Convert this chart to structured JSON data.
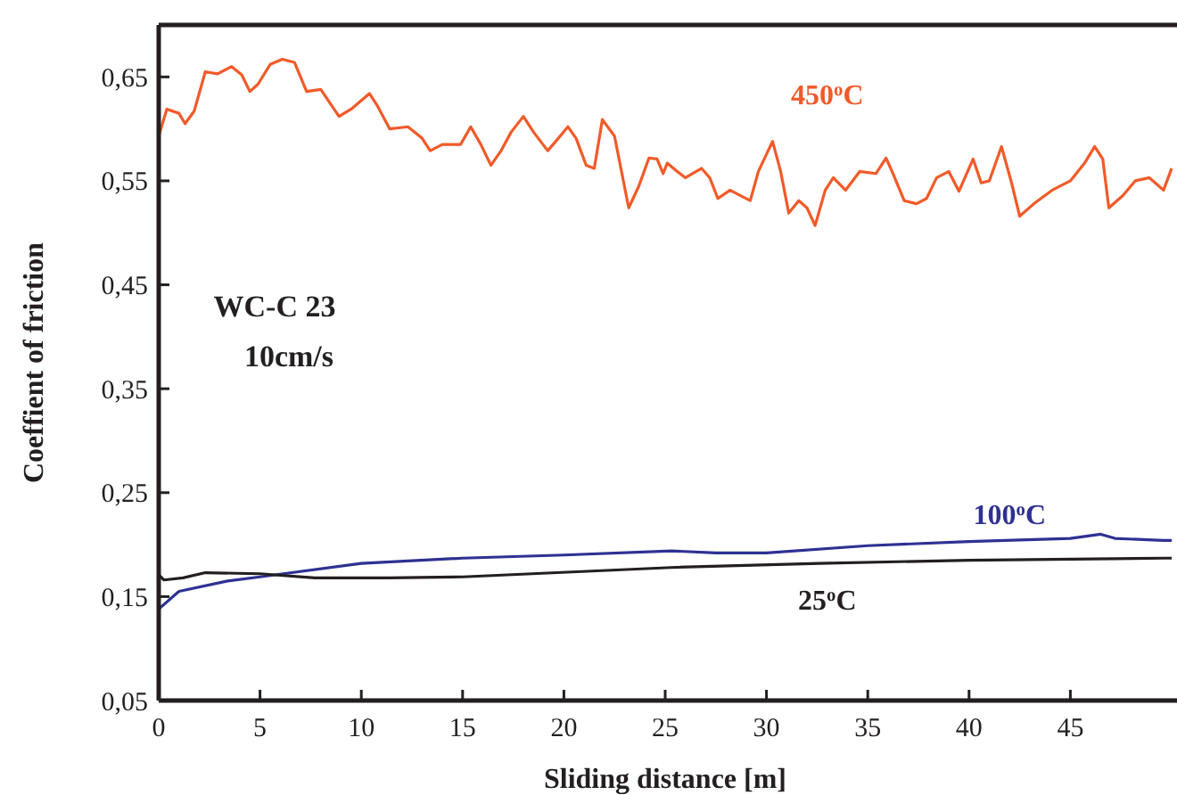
{
  "chart_data": {
    "type": "line",
    "xlabel": "Sliding distance [m]",
    "ylabel": "Coeffient of friction",
    "xlim": [
      0,
      50
    ],
    "xticks": [
      0,
      5,
      10,
      15,
      20,
      25,
      30,
      35,
      40,
      45
    ],
    "ylim": [
      0.05,
      0.7
    ],
    "yticks": [
      {
        "value": 0.05,
        "label": "0,05"
      },
      {
        "value": 0.15,
        "label": "0,15"
      },
      {
        "value": 0.25,
        "label": "0,25"
      },
      {
        "value": 0.35,
        "label": "0,35"
      },
      {
        "value": 0.45,
        "label": "0,45"
      },
      {
        "value": 0.55,
        "label": "0,55"
      },
      {
        "value": 0.65,
        "label": "0,65"
      }
    ],
    "annotations": [
      "WC-C 23",
      "10cm/s"
    ],
    "series": [
      {
        "name": "450$^{o}$C",
        "color": "#f15a29",
        "x": [
          0,
          0.4,
          1,
          1.3,
          1.75,
          2.3,
          2.9,
          3.6,
          4.1,
          4.5,
          4.9,
          5.5,
          6.1,
          6.7,
          7.3,
          8,
          8.9,
          9.5,
          10.4,
          10.8,
          11.4,
          12.3,
          13,
          13.4,
          14,
          14.9,
          15.4,
          15.9,
          16.4,
          16.9,
          17.4,
          18,
          18.5,
          19.2,
          19.6,
          20.2,
          20.6,
          21.1,
          21.5,
          21.9,
          22.5,
          23.2,
          23.7,
          24.2,
          24.6,
          24.9,
          25.1,
          25.6,
          26,
          26.8,
          27.2,
          27.6,
          28.2,
          29.2,
          29.6,
          30.3,
          30.7,
          31.1,
          31.6,
          32,
          32.4,
          32.9,
          33.3,
          33.9,
          34.6,
          35.4,
          35.9,
          36.2,
          36.8,
          37.4,
          37.9,
          38.4,
          39,
          39.5,
          40.2,
          40.6,
          41,
          41.6,
          42.1,
          42.5,
          43.2,
          44.1,
          45,
          45.7,
          46.2,
          46.6,
          46.9,
          47.6,
          48.2,
          48.9,
          49.6,
          50
        ],
        "values": [
          0.593,
          0.619,
          0.615,
          0.605,
          0.617,
          0.655,
          0.653,
          0.66,
          0.652,
          0.636,
          0.643,
          0.662,
          0.667,
          0.664,
          0.636,
          0.638,
          0.612,
          0.619,
          0.634,
          0.622,
          0.6,
          0.602,
          0.591,
          0.579,
          0.585,
          0.585,
          0.602,
          0.585,
          0.565,
          0.579,
          0.597,
          0.612,
          0.597,
          0.579,
          0.588,
          0.602,
          0.591,
          0.565,
          0.562,
          0.609,
          0.593,
          0.524,
          0.545,
          0.572,
          0.571,
          0.557,
          0.567,
          0.559,
          0.553,
          0.562,
          0.553,
          0.533,
          0.541,
          0.531,
          0.559,
          0.588,
          0.559,
          0.519,
          0.531,
          0.524,
          0.507,
          0.541,
          0.553,
          0.541,
          0.559,
          0.557,
          0.572,
          0.559,
          0.531,
          0.528,
          0.533,
          0.553,
          0.559,
          0.54,
          0.571,
          0.548,
          0.55,
          0.583,
          0.548,
          0.516,
          0.528,
          0.541,
          0.55,
          0.567,
          0.583,
          0.571,
          0.524,
          0.536,
          0.55,
          0.553,
          0.541,
          0.562
        ]
      },
      {
        "name": "100$^{o}$C",
        "color": "#2e3192",
        "x": [
          0,
          1,
          3.4,
          5,
          10,
          15,
          20,
          25.3,
          27.5,
          30,
          35,
          40,
          45,
          46.5,
          47.2,
          49.6,
          50
        ],
        "values": [
          0.138,
          0.155,
          0.165,
          0.169,
          0.182,
          0.187,
          0.19,
          0.194,
          0.192,
          0.192,
          0.199,
          0.203,
          0.206,
          0.21,
          0.206,
          0.204,
          0.204
        ]
      },
      {
        "name": "25$^{o}$C",
        "color": "#231f20",
        "x": [
          0,
          0.25,
          1.2,
          2.3,
          5,
          7.7,
          11.4,
          15,
          25.3,
          32.6,
          40,
          49.6,
          50
        ],
        "values": [
          0.171,
          0.166,
          0.168,
          0.173,
          0.172,
          0.168,
          0.168,
          0.169,
          0.178,
          0.182,
          0.185,
          0.187,
          0.187
        ]
      }
    ]
  }
}
